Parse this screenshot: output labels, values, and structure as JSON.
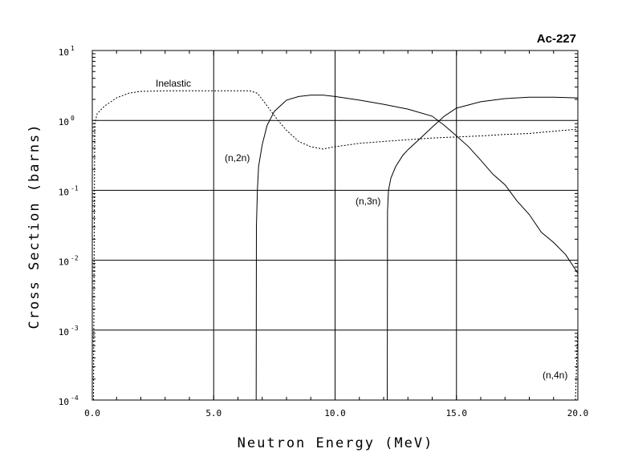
{
  "chart_data": {
    "type": "line",
    "title": "Ac-227",
    "xlabel": "Neutron Energy (MeV)",
    "ylabel": "Cross Section (barns)",
    "xlim": [
      0,
      20
    ],
    "ylim": [
      0.0001,
      10
    ],
    "yscale": "log",
    "grid": true,
    "x_ticks": [
      0,
      5,
      10,
      15,
      20
    ],
    "x_tick_labels": [
      "0.0",
      "5.0",
      "10.0",
      "15.0",
      "20.0"
    ],
    "y_ticks": [
      {
        "mantissa": "10",
        "exponent": "-4",
        "value": 0.0001
      },
      {
        "mantissa": "10",
        "exponent": "-3",
        "value": 0.001
      },
      {
        "mantissa": "10",
        "exponent": "-2",
        "value": 0.01
      },
      {
        "mantissa": "10",
        "exponent": "-1",
        "value": 0.1
      },
      {
        "mantissa": "10",
        "exponent": "0",
        "value": 1
      },
      {
        "mantissa": "10",
        "exponent": "1",
        "value": 10
      }
    ],
    "series": [
      {
        "name": "Inelastic",
        "style": "dashed",
        "x": [
          0.05,
          0.1,
          0.2,
          0.5,
          1.0,
          1.5,
          2.0,
          3.0,
          4.0,
          5.0,
          6.0,
          6.5,
          6.8,
          7.0,
          7.3,
          7.6,
          8.0,
          8.5,
          9.0,
          9.5,
          10.0,
          11.0,
          12.0,
          13.0,
          14.0,
          15.0,
          16.0,
          17.0,
          18.0,
          19.0,
          20.0
        ],
        "y": [
          0.0001,
          0.9,
          1.25,
          1.6,
          2.1,
          2.45,
          2.6,
          2.65,
          2.65,
          2.65,
          2.65,
          2.65,
          2.45,
          2.0,
          1.45,
          1.05,
          0.72,
          0.5,
          0.42,
          0.39,
          0.42,
          0.47,
          0.5,
          0.53,
          0.56,
          0.58,
          0.6,
          0.63,
          0.65,
          0.7,
          0.75
        ]
      },
      {
        "name": "(n,2n)",
        "style": "solid",
        "x": [
          6.75,
          6.76,
          6.8,
          6.85,
          7.0,
          7.2,
          7.5,
          8.0,
          8.5,
          9.0,
          9.5,
          10.0,
          11.0,
          12.0,
          13.0,
          14.0,
          14.5,
          15.0,
          15.5,
          16.0,
          16.5,
          17.0,
          17.5,
          18.0,
          18.5,
          19.0,
          19.5,
          20.0
        ],
        "y": [
          0.0001,
          0.03,
          0.1,
          0.22,
          0.45,
          0.85,
          1.35,
          1.95,
          2.2,
          2.3,
          2.3,
          2.2,
          1.95,
          1.7,
          1.45,
          1.15,
          0.85,
          0.6,
          0.42,
          0.27,
          0.17,
          0.12,
          0.07,
          0.045,
          0.025,
          0.018,
          0.012,
          0.0065
        ]
      },
      {
        "name": "(n,3n)",
        "style": "solid",
        "x": [
          12.15,
          12.16,
          12.2,
          12.3,
          12.5,
          12.8,
          13.0,
          13.5,
          14.0,
          14.5,
          15.0,
          16.0,
          17.0,
          18.0,
          19.0,
          20.0
        ],
        "y": [
          0.0001,
          0.05,
          0.1,
          0.15,
          0.22,
          0.32,
          0.38,
          0.55,
          0.8,
          1.15,
          1.5,
          1.85,
          2.05,
          2.15,
          2.15,
          2.1
        ]
      },
      {
        "name": "(n,4n)",
        "style": "dashed",
        "x": [
          19.9,
          19.93,
          19.96,
          20.0
        ],
        "y": [
          0.0001,
          0.0002,
          0.0005,
          0.001
        ]
      }
    ],
    "annotations": [
      {
        "text": "Inelastic",
        "series": "Inelastic"
      },
      {
        "text": "(n,2n)",
        "series": "(n,2n)"
      },
      {
        "text": "(n,3n)",
        "series": "(n,3n)"
      },
      {
        "text": "(n,4n)",
        "series": "(n,4n)"
      }
    ]
  }
}
